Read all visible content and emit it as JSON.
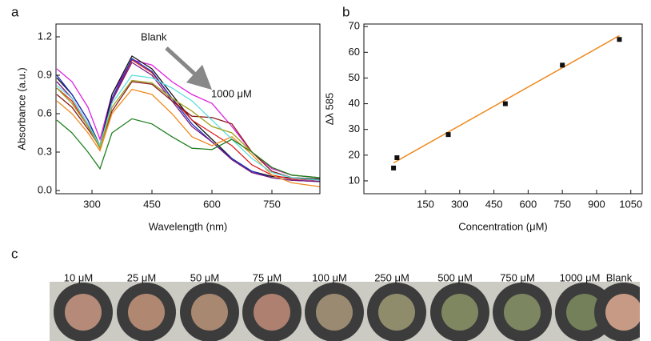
{
  "chart_data": [
    {
      "type": "line",
      "panel_label": "a",
      "xlabel": "Wavelength (nm)",
      "ylabel": "Absorbance (a.u.)",
      "xlim": [
        210,
        870
      ],
      "ylim": [
        -0.025,
        1.3
      ],
      "xticks": [
        300,
        450,
        600,
        750
      ],
      "yticks": [
        {
          "value": 0,
          "label": "0.0"
        },
        0.3,
        0.6,
        0.9,
        1.2
      ],
      "annotations": [
        "Blank",
        "1000 μM"
      ],
      "x": [
        212,
        250,
        290,
        320,
        350,
        400,
        450,
        500,
        550,
        600,
        650,
        700,
        750,
        800,
        870
      ],
      "series": [
        {
          "color": "#e020e0",
          "values": [
            0.95,
            0.85,
            0.65,
            0.4,
            0.75,
            1.02,
            0.98,
            0.85,
            0.75,
            0.68,
            0.5,
            0.3,
            0.17,
            0.12,
            0.1
          ]
        },
        {
          "color": "#111111",
          "values": [
            0.88,
            0.75,
            0.55,
            0.35,
            0.75,
            1.05,
            0.95,
            0.75,
            0.55,
            0.4,
            0.25,
            0.15,
            0.11,
            0.1,
            0.09
          ]
        },
        {
          "color": "#e02020",
          "values": [
            0.8,
            0.7,
            0.5,
            0.33,
            0.7,
            1.02,
            0.92,
            0.72,
            0.55,
            0.45,
            0.35,
            0.2,
            0.12,
            0.09,
            0.08
          ]
        },
        {
          "color": "#2030c0",
          "values": [
            0.9,
            0.75,
            0.55,
            0.34,
            0.72,
            1.03,
            0.93,
            0.72,
            0.52,
            0.38,
            0.25,
            0.15,
            0.1,
            0.08,
            0.07
          ]
        },
        {
          "color": "#7a1a7a",
          "values": [
            0.85,
            0.72,
            0.52,
            0.33,
            0.7,
            1.0,
            0.9,
            0.7,
            0.5,
            0.38,
            0.24,
            0.14,
            0.1,
            0.08,
            0.07
          ]
        },
        {
          "color": "#8b1a1a",
          "values": [
            0.75,
            0.65,
            0.48,
            0.34,
            0.62,
            0.85,
            0.83,
            0.7,
            0.58,
            0.57,
            0.52,
            0.3,
            0.15,
            0.1,
            0.08
          ]
        },
        {
          "color": "#f08a20",
          "values": [
            0.7,
            0.6,
            0.45,
            0.31,
            0.6,
            0.79,
            0.75,
            0.6,
            0.42,
            0.35,
            0.42,
            0.28,
            0.12,
            0.06,
            0.03
          ]
        },
        {
          "color": "#60e0e0",
          "values": [
            0.82,
            0.72,
            0.52,
            0.35,
            0.68,
            0.9,
            0.88,
            0.8,
            0.7,
            0.55,
            0.4,
            0.25,
            0.14,
            0.1,
            0.08
          ]
        },
        {
          "color": "#a0a020",
          "values": [
            0.8,
            0.68,
            0.5,
            0.33,
            0.65,
            0.86,
            0.84,
            0.72,
            0.62,
            0.5,
            0.45,
            0.3,
            0.18,
            0.12,
            0.1
          ]
        },
        {
          "color": "#208020",
          "values": [
            0.55,
            0.45,
            0.3,
            0.17,
            0.45,
            0.56,
            0.52,
            0.42,
            0.33,
            0.32,
            0.4,
            0.3,
            0.18,
            0.12,
            0.1
          ]
        }
      ]
    },
    {
      "type": "scatter",
      "panel_label": "b",
      "xlabel": "Concentration (μM)",
      "ylabel": "Δλ 585",
      "xlim": [
        -120,
        1100
      ],
      "ylim": [
        5,
        71
      ],
      "xticks": [
        150,
        300,
        450,
        600,
        750,
        900,
        1050
      ],
      "yticks": [
        10,
        20,
        30,
        40,
        50,
        60,
        70
      ],
      "color": "#111111",
      "x": [
        10,
        25,
        250,
        500,
        750,
        1000
      ],
      "values": [
        15,
        19,
        28,
        40,
        55,
        65
      ],
      "fit": {
        "color": "#f08a20",
        "x": [
          10,
          1000
        ],
        "values": [
          17,
          66.5
        ]
      }
    }
  ],
  "panel_c": {
    "panel_label": "c",
    "wells": [
      {
        "label": "10 μM",
        "color": "#b58a78"
      },
      {
        "label": "25 μM",
        "color": "#b08872"
      },
      {
        "label": "50 μM",
        "color": "#a88870"
      },
      {
        "label": "75 μM",
        "color": "#ad8070"
      },
      {
        "label": "100 μM",
        "color": "#9a8a72"
      },
      {
        "label": "250 μM",
        "color": "#8f8c6c"
      },
      {
        "label": "500 μM",
        "color": "#7e8760"
      },
      {
        "label": "750 μM",
        "color": "#7c8660"
      },
      {
        "label": "1000 μM",
        "color": "#73805a"
      },
      {
        "label": "Blank",
        "color": "#c69a84"
      }
    ]
  }
}
